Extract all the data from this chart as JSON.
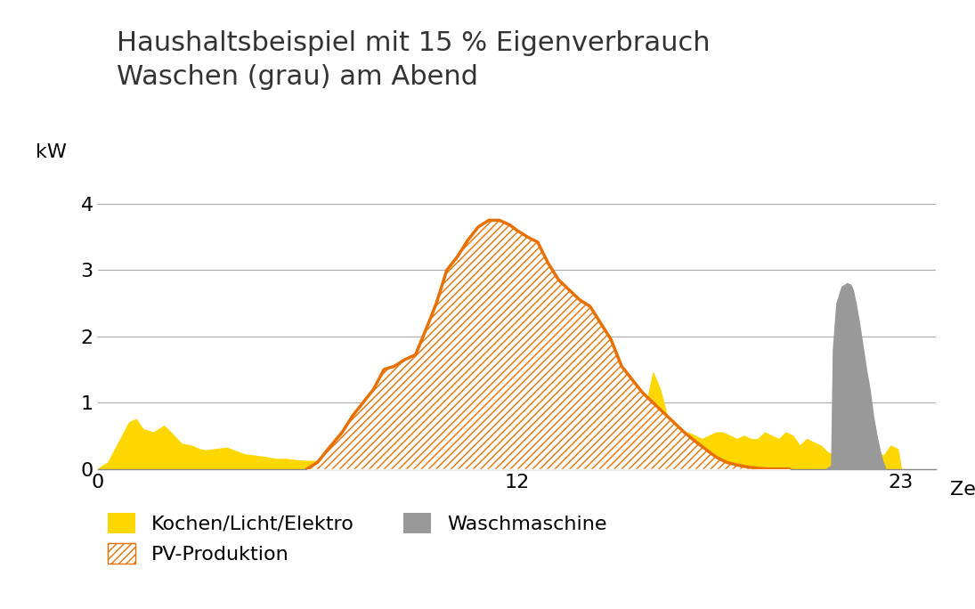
{
  "title": "Haushaltsbeispiel mit 15 % Eigenverbrauch\nWaschen (grau) am Abend",
  "xlabel": "Zeit",
  "ylabel": "kW",
  "xlim": [
    0,
    24
  ],
  "ylim": [
    0,
    4.5
  ],
  "yticks": [
    0,
    1,
    2,
    3,
    4
  ],
  "xticks": [
    0,
    12,
    23
  ],
  "background_color": "#ffffff",
  "grid_color": "#aaaaaa",
  "title_fontsize": 22,
  "axis_fontsize": 16,
  "legend_fontsize": 16,
  "yellow_color": "#FFD700",
  "pv_hatch_color": "#E87000",
  "pv_line_color": "#E87000",
  "gray_color": "#999999",
  "time_yellow": [
    0.0,
    0.3,
    0.6,
    0.9,
    1.1,
    1.3,
    1.6,
    1.9,
    2.1,
    2.4,
    2.7,
    2.9,
    3.1,
    3.4,
    3.7,
    3.9,
    4.2,
    4.5,
    4.8,
    5.1,
    5.4,
    5.7,
    6.0,
    6.3,
    6.6,
    6.9,
    7.2,
    7.5,
    7.8,
    8.1,
    8.4,
    8.7,
    9.0,
    9.3,
    9.6,
    9.9,
    10.2,
    10.5,
    10.8,
    11.0,
    11.2,
    11.4,
    11.5,
    11.7,
    11.9,
    12.1,
    12.3,
    12.5,
    12.7,
    12.9,
    13.1,
    13.3,
    13.5,
    13.7,
    13.9,
    14.1,
    14.3,
    14.5,
    14.7,
    14.9,
    15.1,
    15.3,
    15.5,
    15.7,
    15.9,
    16.1,
    16.3,
    16.5,
    16.7,
    16.9,
    17.1,
    17.3,
    17.5,
    17.7,
    17.9,
    18.1,
    18.3,
    18.5,
    18.7,
    18.9,
    19.1,
    19.3,
    19.5,
    19.7,
    19.9,
    20.1,
    20.3,
    20.5,
    20.7,
    20.9,
    21.1,
    21.3,
    21.5,
    21.7,
    21.9,
    22.1,
    22.3,
    22.5,
    22.7,
    22.9,
    23.0
  ],
  "val_yellow": [
    0.0,
    0.1,
    0.4,
    0.7,
    0.75,
    0.6,
    0.55,
    0.65,
    0.55,
    0.38,
    0.35,
    0.3,
    0.28,
    0.3,
    0.32,
    0.28,
    0.22,
    0.2,
    0.18,
    0.15,
    0.15,
    0.13,
    0.12,
    0.12,
    0.12,
    0.12,
    0.12,
    0.12,
    0.12,
    0.12,
    0.12,
    0.12,
    0.12,
    0.12,
    0.12,
    0.12,
    0.12,
    0.12,
    0.12,
    1.0,
    1.05,
    0.8,
    0.6,
    0.1,
    0.1,
    0.1,
    0.1,
    0.1,
    0.1,
    0.1,
    0.1,
    0.1,
    0.1,
    0.1,
    0.1,
    0.1,
    0.1,
    0.1,
    0.1,
    0.35,
    0.55,
    0.55,
    0.9,
    0.95,
    1.45,
    1.2,
    0.8,
    0.65,
    0.5,
    0.55,
    0.5,
    0.45,
    0.5,
    0.55,
    0.55,
    0.5,
    0.45,
    0.5,
    0.45,
    0.45,
    0.55,
    0.5,
    0.45,
    0.55,
    0.5,
    0.35,
    0.45,
    0.4,
    0.35,
    0.25,
    0.2,
    0.35,
    0.4,
    0.38,
    0.35,
    0.3,
    0.25,
    0.2,
    0.35,
    0.3,
    0.0
  ],
  "time_pv": [
    6.0,
    6.3,
    6.6,
    7.0,
    7.3,
    7.6,
    7.9,
    8.2,
    8.5,
    8.8,
    9.1,
    9.4,
    9.7,
    10.0,
    10.3,
    10.6,
    10.9,
    11.2,
    11.5,
    11.8,
    12.0,
    12.3,
    12.6,
    12.9,
    13.2,
    13.5,
    13.8,
    14.1,
    14.4,
    14.7,
    15.0,
    15.3,
    15.6,
    15.9,
    16.2,
    16.5,
    16.8,
    17.1,
    17.4,
    17.7,
    18.0,
    18.3,
    18.6,
    18.9,
    19.2,
    19.5,
    19.8
  ],
  "val_pv": [
    0.0,
    0.1,
    0.3,
    0.55,
    0.8,
    1.0,
    1.2,
    1.5,
    1.55,
    1.65,
    1.72,
    2.1,
    2.5,
    3.0,
    3.2,
    3.45,
    3.65,
    3.75,
    3.75,
    3.68,
    3.6,
    3.5,
    3.42,
    3.1,
    2.85,
    2.7,
    2.55,
    2.45,
    2.2,
    1.95,
    1.55,
    1.35,
    1.15,
    1.0,
    0.85,
    0.7,
    0.55,
    0.42,
    0.3,
    0.18,
    0.1,
    0.06,
    0.03,
    0.01,
    0.0,
    0.0,
    0.0
  ],
  "time_wash": [
    20.85,
    21.0,
    21.05,
    21.15,
    21.3,
    21.45,
    21.55,
    21.62,
    21.7,
    21.8,
    22.0,
    22.1,
    22.2,
    22.3,
    22.38,
    22.45,
    22.52,
    22.55
  ],
  "val_wash": [
    0.0,
    0.05,
    1.8,
    2.5,
    2.75,
    2.8,
    2.78,
    2.7,
    2.5,
    2.2,
    1.5,
    1.2,
    0.8,
    0.5,
    0.3,
    0.15,
    0.05,
    0.0
  ]
}
